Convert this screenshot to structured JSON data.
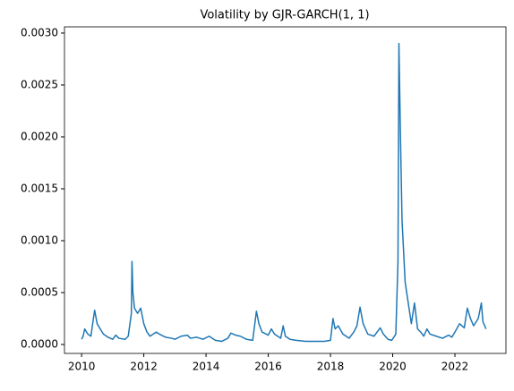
{
  "chart_data": {
    "type": "line",
    "title": "Volatility by GJR-GARCH(1, 1)",
    "x": [
      2010.0,
      2010.05,
      2010.1,
      2010.2,
      2010.3,
      2010.38,
      2010.42,
      2010.5,
      2010.6,
      2010.7,
      2010.85,
      2011.0,
      2011.1,
      2011.2,
      2011.4,
      2011.5,
      2011.6,
      2011.62,
      2011.65,
      2011.7,
      2011.8,
      2011.9,
      2012.0,
      2012.1,
      2012.2,
      2012.4,
      2012.5,
      2012.7,
      2012.9,
      2013.0,
      2013.2,
      2013.4,
      2013.5,
      2013.7,
      2013.9,
      2014.1,
      2014.3,
      2014.5,
      2014.7,
      2014.8,
      2014.95,
      2015.1,
      2015.3,
      2015.5,
      2015.62,
      2015.7,
      2015.8,
      2016.0,
      2016.1,
      2016.2,
      2016.4,
      2016.48,
      2016.55,
      2016.7,
      2016.9,
      2017.2,
      2017.5,
      2017.8,
      2018.0,
      2018.08,
      2018.15,
      2018.25,
      2018.4,
      2018.6,
      2018.75,
      2018.85,
      2018.95,
      2019.05,
      2019.2,
      2019.4,
      2019.6,
      2019.7,
      2019.85,
      2019.97,
      2020.1,
      2020.17,
      2020.2,
      2020.25,
      2020.3,
      2020.4,
      2020.5,
      2020.6,
      2020.7,
      2020.8,
      2020.9,
      2021.0,
      2021.1,
      2021.2,
      2021.4,
      2021.6,
      2021.8,
      2021.9,
      2022.0,
      2022.15,
      2022.3,
      2022.4,
      2022.5,
      2022.6,
      2022.75,
      2022.85,
      2022.9,
      2023.0
    ],
    "series": [
      {
        "color": "#1f77b4",
        "values": [
          5e-05,
          8e-05,
          0.00015,
          0.0001,
          8e-05,
          0.00025,
          0.00033,
          0.0002,
          0.00015,
          0.0001,
          7e-05,
          5e-05,
          9e-05,
          6e-05,
          5e-05,
          8e-05,
          0.0003,
          0.0008,
          0.0005,
          0.00035,
          0.0003,
          0.00035,
          0.0002,
          0.00012,
          8e-05,
          0.00012,
          0.0001,
          7e-05,
          6e-05,
          5e-05,
          8e-05,
          9e-05,
          6e-05,
          7e-05,
          5e-05,
          8e-05,
          4e-05,
          3e-05,
          6e-05,
          0.00011,
          9e-05,
          8e-05,
          5e-05,
          4e-05,
          0.00032,
          0.0002,
          0.00012,
          9e-05,
          0.00015,
          0.0001,
          6e-05,
          0.00018,
          8e-05,
          5e-05,
          4e-05,
          3e-05,
          3e-05,
          3e-05,
          4e-05,
          0.00025,
          0.00015,
          0.00018,
          0.0001,
          6e-05,
          0.00012,
          0.00018,
          0.00036,
          0.0002,
          0.0001,
          8e-05,
          0.00016,
          0.0001,
          5e-05,
          4e-05,
          0.0001,
          0.0008,
          0.0029,
          0.002,
          0.0012,
          0.0006,
          0.0004,
          0.0002,
          0.0004,
          0.00015,
          0.00012,
          8e-05,
          0.00015,
          0.0001,
          8e-05,
          6e-05,
          9e-05,
          7e-05,
          0.00012,
          0.0002,
          0.00016,
          0.00035,
          0.00025,
          0.00018,
          0.00025,
          0.0004,
          0.00022,
          0.00015
        ]
      }
    ],
    "xlim": [
      2009.45,
      2023.64
    ],
    "xticks": [
      2010,
      2012,
      2014,
      2016,
      2018,
      2020,
      2022
    ],
    "ylim": [
      -8.6e-05,
      0.00306
    ],
    "yticks": [
      {
        "value": 0,
        "label": "0.0000"
      },
      {
        "value": 0.0005,
        "label": "0.0005"
      },
      {
        "value": 0.001,
        "label": "0.0010"
      },
      {
        "value": 0.0015,
        "label": "0.0015"
      },
      {
        "value": 0.002,
        "label": "0.0020"
      },
      {
        "value": 0.0025,
        "label": "0.0025"
      },
      {
        "value": 0.003,
        "label": "0.0030"
      }
    ]
  }
}
